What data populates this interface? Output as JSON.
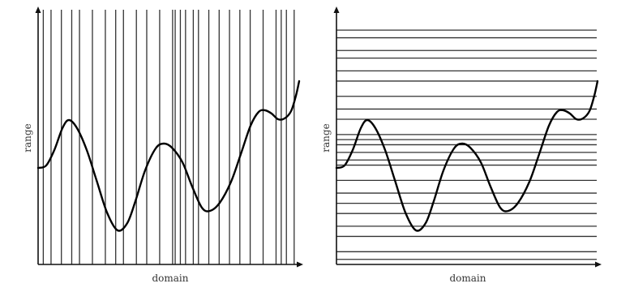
{
  "left_panel": {
    "xlabel": "domain",
    "ylabel": "range",
    "sampling": "vertical",
    "line_positions": [
      0.02,
      0.05,
      0.09,
      0.13,
      0.16,
      0.21,
      0.26,
      0.3,
      0.33,
      0.38,
      0.42,
      0.47,
      0.52,
      0.53,
      0.55,
      0.57,
      0.6,
      0.62,
      0.66,
      0.7,
      0.74,
      0.78,
      0.82,
      0.87,
      0.92,
      0.94,
      0.96,
      0.99
    ]
  },
  "right_panel": {
    "xlabel": "domain",
    "ylabel": "range",
    "sampling": "horizontal",
    "line_positions": [
      0.08,
      0.11,
      0.16,
      0.19,
      0.24,
      0.28,
      0.34,
      0.39,
      0.43,
      0.49,
      0.51,
      0.53,
      0.56,
      0.59,
      0.61,
      0.67,
      0.72,
      0.76,
      0.8,
      0.85,
      0.89,
      0.95,
      0.98
    ]
  },
  "colors": {
    "line": "#333333",
    "curve": "#000000",
    "background": "#ffffff"
  }
}
